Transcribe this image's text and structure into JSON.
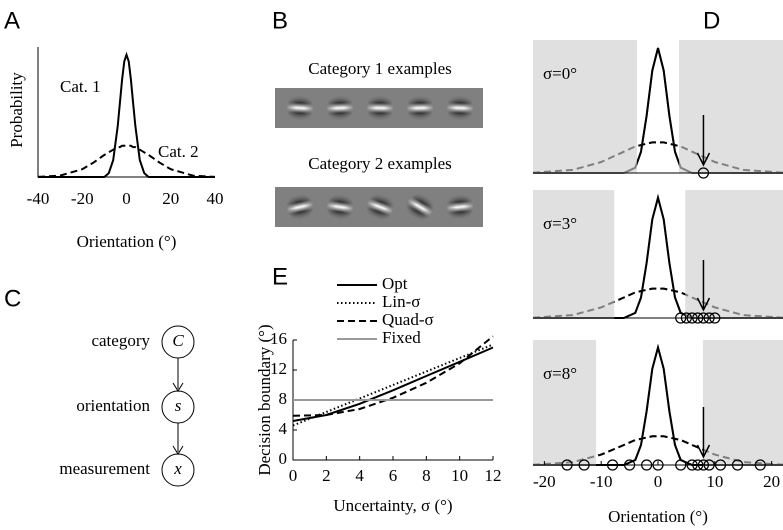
{
  "panel_labels": [
    "A",
    "B",
    "C",
    "D",
    "E"
  ],
  "examples": {
    "category1": "Category 1 examples",
    "category2": "Category 2 examples"
  },
  "diagram": {
    "nodes": [
      {
        "label": "category",
        "symbol": "C"
      },
      {
        "label": "orientation",
        "symbol": "s"
      },
      {
        "label": "measurement",
        "symbol": "x"
      }
    ]
  },
  "chart_data": [
    {
      "type": "line",
      "xlabel": "Orientation (°)",
      "ylabel": "Probability",
      "annotations": [
        "Cat. 1",
        "Cat. 2"
      ],
      "x": [
        -40,
        -30,
        -20,
        -15,
        -10,
        -8,
        -6,
        -4,
        -3,
        -2,
        -1,
        0,
        1,
        2,
        3,
        4,
        6,
        8,
        10,
        15,
        20,
        30,
        40
      ],
      "series": [
        {
          "name": "Cat. 1",
          "color": "#000000",
          "style": "solid",
          "values": [
            0,
            0,
            0,
            0,
            0,
            0.03,
            0.13,
            0.39,
            0.57,
            0.75,
            0.89,
            0.94,
            0.89,
            0.75,
            0.57,
            0.39,
            0.13,
            0.03,
            0,
            0,
            0,
            0,
            0
          ]
        },
        {
          "name": "Cat. 2",
          "color": "#000000",
          "style": "dashed",
          "values": [
            0.001,
            0.011,
            0.06,
            0.11,
            0.17,
            0.19,
            0.21,
            0.23,
            0.23,
            0.24,
            0.24,
            0.24,
            0.24,
            0.24,
            0.23,
            0.23,
            0.21,
            0.19,
            0.17,
            0.11,
            0.06,
            0.011,
            0.001
          ]
        }
      ],
      "xlim": [
        -40,
        40
      ],
      "xticks": [
        -40,
        -20,
        0,
        20,
        40
      ],
      "ylim": [
        0,
        1
      ]
    },
    {
      "type": "line",
      "xlabel": "Uncertainty, σ (°)",
      "ylabel": "Decision boundary (°)",
      "x": [
        0,
        2,
        4,
        6,
        8,
        10,
        12
      ],
      "series": [
        {
          "name": "Opt",
          "color": "#000000",
          "style": "solid",
          "values": [
            5.2,
            6.0,
            7.5,
            9.3,
            11.2,
            13.1,
            15.0
          ]
        },
        {
          "name": "Lin-σ",
          "color": "#000000",
          "style": "dotted",
          "values": [
            4.6,
            6.4,
            8.2,
            10.0,
            11.8,
            13.6,
            15.4
          ]
        },
        {
          "name": "Quad-σ",
          "color": "#000000",
          "style": "dashed",
          "values": [
            5.9,
            6.0,
            6.8,
            8.3,
            10.3,
            12.9,
            16.5
          ]
        },
        {
          "name": "Fixed",
          "color": "#999999",
          "style": "solid",
          "values": [
            8,
            8,
            8,
            8,
            8,
            8,
            8
          ]
        }
      ],
      "xlim": [
        0,
        12
      ],
      "xticks": [
        0,
        2,
        4,
        6,
        8,
        10,
        12
      ],
      "ylim": [
        0,
        16
      ],
      "yticks": [
        0,
        4,
        8,
        12,
        16
      ]
    },
    {
      "type": "line",
      "xlabel": "Orientation (°)",
      "x": [
        -22,
        -15,
        -10,
        -6,
        -4,
        -3,
        -2,
        -1,
        0,
        1,
        2,
        3,
        4,
        6,
        10,
        15,
        22
      ],
      "series": [
        {
          "name": "Cat. 1",
          "color": "#000000",
          "style": "solid",
          "values": [
            0,
            0,
            0,
            0,
            0.04,
            0.16,
            0.43,
            0.77,
            0.94,
            0.77,
            0.43,
            0.16,
            0.04,
            0,
            0,
            0,
            0
          ]
        },
        {
          "name": "Cat. 2",
          "color": "#000000",
          "style": "dashed",
          "values": [
            0.002,
            0.023,
            0.083,
            0.16,
            0.2,
            0.21,
            0.22,
            0.23,
            0.23,
            0.23,
            0.22,
            0.21,
            0.2,
            0.16,
            0.083,
            0.023,
            0.002
          ]
        }
      ],
      "xlim": [
        -22,
        22
      ],
      "xticks": [
        -20,
        -10,
        0,
        10,
        20
      ],
      "ylim": [
        0,
        1
      ],
      "panels": [
        {
          "label": "σ=0°",
          "boundary": [
            -3.7,
            3.7
          ],
          "stimulus": 8,
          "measurements": [
            8
          ]
        },
        {
          "label": "σ=3°",
          "boundary": [
            -7.7,
            4.8
          ],
          "stimulus": 8,
          "measurements": [
            4,
            5,
            6,
            7,
            8,
            9,
            10
          ]
        },
        {
          "label": "σ=8°",
          "boundary": [
            -10.9,
            7.9
          ],
          "stimulus": 8,
          "measurements": [
            -16,
            -13,
            -8,
            -5,
            -2,
            0,
            4,
            6,
            7,
            8,
            9,
            11,
            14,
            18
          ]
        }
      ]
    }
  ]
}
